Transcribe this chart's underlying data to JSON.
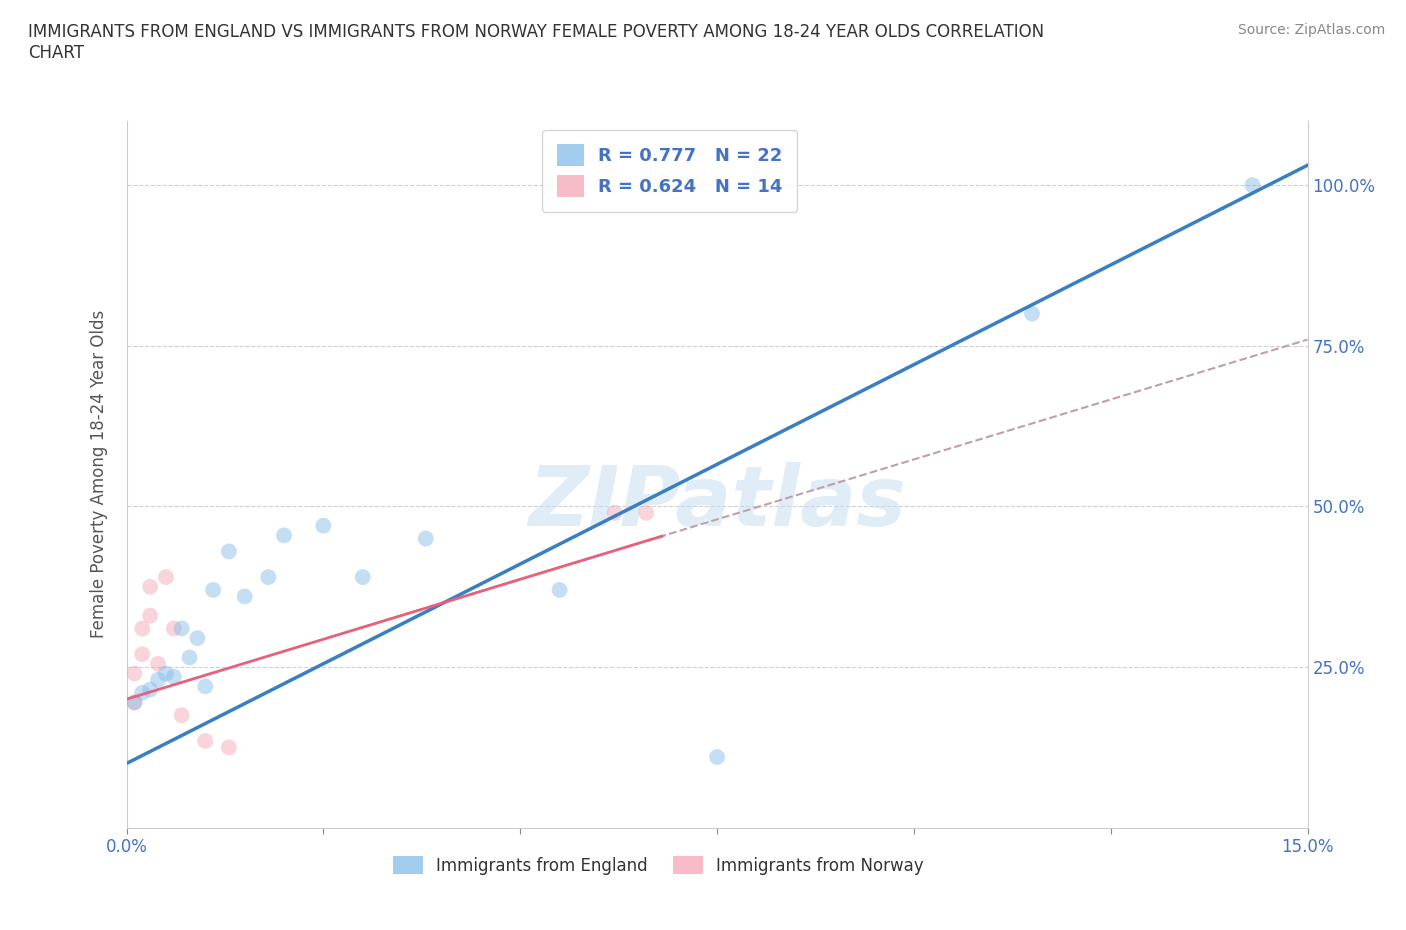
{
  "title": "IMMIGRANTS FROM ENGLAND VS IMMIGRANTS FROM NORWAY FEMALE POVERTY AMONG 18-24 YEAR OLDS CORRELATION\nCHART",
  "source": "Source: ZipAtlas.com",
  "ylabel": "Female Poverty Among 18-24 Year Olds",
  "xlim": [
    0.0,
    0.15
  ],
  "ylim": [
    0.0,
    1.1
  ],
  "y_ticks": [
    0.0,
    0.25,
    0.5,
    0.75,
    1.0
  ],
  "y_tick_labels": [
    "",
    "25.0%",
    "50.0%",
    "75.0%",
    "100.0%"
  ],
  "x_ticks": [
    0.0,
    0.025,
    0.05,
    0.075,
    0.1,
    0.125,
    0.15
  ],
  "x_tick_labels": [
    "0.0%",
    "",
    "",
    "",
    "",
    "",
    "15.0%"
  ],
  "england_color": "#7db8e8",
  "norway_color": "#f4a0b0",
  "england_line_color": "#3a7fc1",
  "norway_line_color": "#e8607a",
  "gray_dash_color": "#c0a0a8",
  "england_R": 0.777,
  "england_N": 22,
  "norway_R": 0.624,
  "norway_N": 14,
  "legend_label_england": "Immigrants from England",
  "legend_label_norway": "Immigrants from Norway",
  "england_x": [
    0.001,
    0.002,
    0.003,
    0.004,
    0.005,
    0.006,
    0.007,
    0.008,
    0.009,
    0.01,
    0.011,
    0.013,
    0.015,
    0.018,
    0.02,
    0.025,
    0.03,
    0.038,
    0.055,
    0.075,
    0.115,
    0.143
  ],
  "england_y": [
    0.195,
    0.21,
    0.215,
    0.23,
    0.24,
    0.235,
    0.31,
    0.265,
    0.295,
    0.22,
    0.37,
    0.43,
    0.36,
    0.39,
    0.455,
    0.47,
    0.39,
    0.45,
    0.37,
    0.11,
    0.8,
    1.0
  ],
  "norway_x": [
    0.001,
    0.001,
    0.002,
    0.002,
    0.003,
    0.003,
    0.004,
    0.005,
    0.006,
    0.007,
    0.01,
    0.013,
    0.062,
    0.066
  ],
  "norway_y": [
    0.195,
    0.24,
    0.27,
    0.31,
    0.33,
    0.375,
    0.255,
    0.39,
    0.31,
    0.175,
    0.135,
    0.125,
    0.49,
    0.49
  ],
  "watermark_text": "ZIPatlas",
  "watermark_color": "#c8dff0",
  "watermark_alpha": 0.55,
  "background_color": "#ffffff",
  "grid_color": "#d0d0d0",
  "dot_size": 130,
  "dot_alpha": 0.45,
  "title_fontsize": 12,
  "axis_fontsize": 12,
  "label_fontsize": 12
}
